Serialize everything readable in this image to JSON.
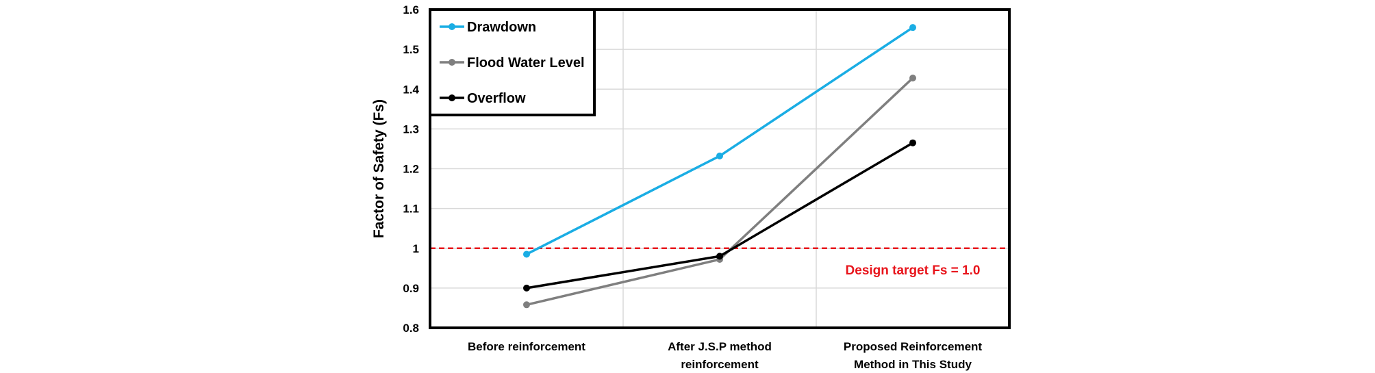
{
  "chart_data": {
    "type": "line",
    "title": "",
    "xlabel": "",
    "ylabel": "Factor of Safety (Fs)",
    "ylim": [
      0.8,
      1.6
    ],
    "yticks": [
      0.8,
      0.9,
      1.0,
      1.1,
      1.2,
      1.3,
      1.4,
      1.5,
      1.6
    ],
    "ytick_labels": [
      "0.8",
      "0.9",
      "1",
      "1.1",
      "1.2",
      "1.3",
      "1.4",
      "1.5",
      "1.6"
    ],
    "grid": true,
    "categories": [
      [
        "Before reinforcement"
      ],
      [
        "After J.S.P method",
        "reinforcement"
      ],
      [
        "Proposed Reinforcement",
        "Method in This Study"
      ]
    ],
    "series": [
      {
        "name": "Drawdown",
        "color": "#1AADE4",
        "values": [
          0.985,
          1.232,
          1.555
        ]
      },
      {
        "name": "Flood Water Level",
        "color": "#7F7F7F",
        "values": [
          0.858,
          0.972,
          1.428
        ]
      },
      {
        "name": "Overflow",
        "color": "#000000",
        "values": [
          0.9,
          0.98,
          1.265
        ]
      }
    ],
    "legend": {
      "position": "top-left"
    },
    "reference_line": {
      "value": 1.0,
      "color": "#E8141B",
      "style": "dashed",
      "label": "Design target Fs = 1.0"
    }
  }
}
